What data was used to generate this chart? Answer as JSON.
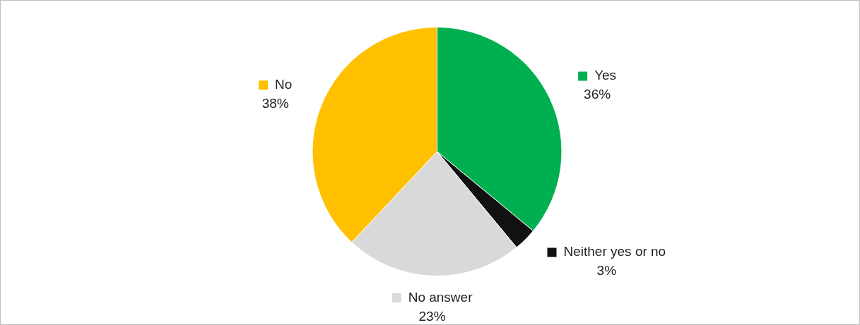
{
  "chart_data": {
    "type": "pie",
    "categories": [
      "Yes",
      "Neither yes or no",
      "No answer",
      "No"
    ],
    "values": [
      36,
      3,
      23,
      38
    ],
    "value_labels": [
      "36%",
      "3%",
      "23%",
      "38%"
    ],
    "colors": [
      "#00b050",
      "#111111",
      "#d9d9d9",
      "#ffc000"
    ],
    "legend": "right"
  }
}
